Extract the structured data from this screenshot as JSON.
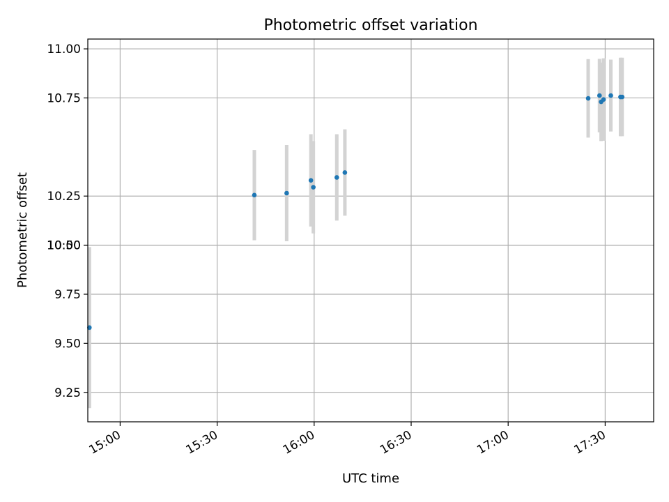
{
  "chart_data": {
    "type": "scatter",
    "title": "Photometric offset variation",
    "xlabel": "UTC time",
    "ylabel": "Photometric offset",
    "x_unit": "minutes",
    "xlim": [
      "14:50",
      "17:45"
    ],
    "ylim": [
      9.1,
      11.05
    ],
    "x_ticks": [
      "15:00",
      "15:30",
      "16:00",
      "16:30",
      "17:00",
      "17:30"
    ],
    "y_ticks": [
      "9.25",
      "9.50",
      "9.75",
      "10.00",
      "10.25",
      "10:50",
      "10.75",
      "11.00"
    ],
    "grid": true,
    "points": [
      {
        "x": "14:50:30",
        "y": 9.58,
        "yerr": 0.41
      },
      {
        "x": "15:41:30",
        "y": 10.255,
        "yerr": 0.23
      },
      {
        "x": "15:51:30",
        "y": 10.265,
        "yerr": 0.245
      },
      {
        "x": "15:59:00",
        "y": 10.33,
        "yerr": 0.235
      },
      {
        "x": "15:59:45",
        "y": 10.295,
        "yerr": 0.235
      },
      {
        "x": "16:07:00",
        "y": 10.345,
        "yerr": 0.22
      },
      {
        "x": "16:09:30",
        "y": 10.37,
        "yerr": 0.22
      },
      {
        "x": "17:24:45",
        "y": 10.748,
        "yerr": 0.2
      },
      {
        "x": "17:28:15",
        "y": 10.762,
        "yerr": 0.187
      },
      {
        "x": "17:28:45",
        "y": 10.73,
        "yerr": 0.2
      },
      {
        "x": "17:29:30",
        "y": 10.742,
        "yerr": 0.21
      },
      {
        "x": "17:31:45",
        "y": 10.762,
        "yerr": 0.183
      },
      {
        "x": "17:34:45",
        "y": 10.755,
        "yerr": 0.2
      },
      {
        "x": "17:35:15",
        "y": 10.755,
        "yerr": 0.2
      }
    ],
    "colors": {
      "point": "#1f77b4",
      "errorbar": "#d3d3d3",
      "grid": "#b0b0b0",
      "axes": "#000000"
    }
  }
}
